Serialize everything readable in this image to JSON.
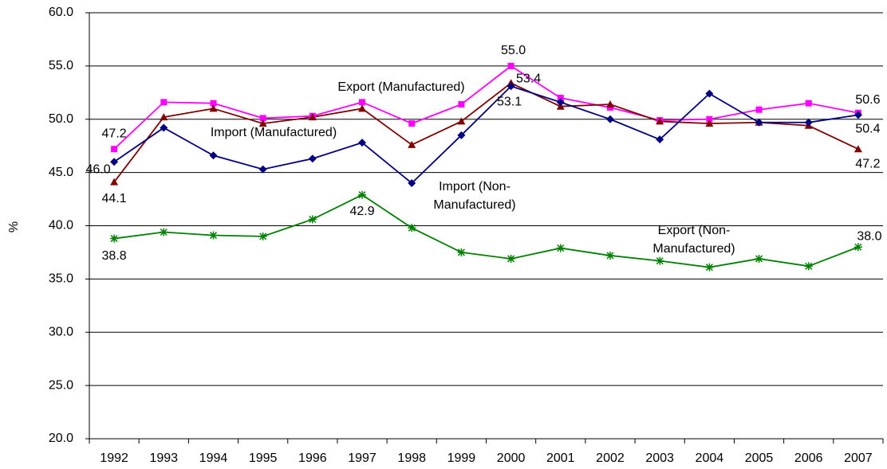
{
  "chart_data": {
    "type": "line",
    "y_label": "%",
    "categories": [
      "1992",
      "1993",
      "1994",
      "1995",
      "1996",
      "1997",
      "1998",
      "1999",
      "2000",
      "2001",
      "2002",
      "2003",
      "2004",
      "2005",
      "2006",
      "2007"
    ],
    "ylim": [
      20,
      60
    ],
    "yticks": [
      {
        "value": 20,
        "label": "20.0"
      },
      {
        "value": 25,
        "label": "25.0"
      },
      {
        "value": 30,
        "label": "30.0"
      },
      {
        "value": 35,
        "label": "35.0"
      },
      {
        "value": 40,
        "label": "40.0"
      },
      {
        "value": 45,
        "label": "45.0"
      },
      {
        "value": 50,
        "label": "50.0"
      },
      {
        "value": 55,
        "label": "55.0"
      },
      {
        "value": 60,
        "label": "60.0"
      }
    ],
    "grid": true,
    "series": [
      {
        "name": "Export (Manufactured)",
        "color": "#ff00ff",
        "marker": "square",
        "values": [
          47.2,
          51.6,
          51.5,
          50.1,
          50.3,
          51.6,
          49.6,
          51.4,
          55.0,
          52.0,
          51.1,
          49.9,
          50.0,
          50.9,
          51.5,
          50.6
        ],
        "value_labels": [
          "47.2",
          null,
          null,
          null,
          null,
          null,
          null,
          null,
          "55.0",
          null,
          null,
          null,
          null,
          null,
          null,
          "50.6"
        ]
      },
      {
        "name": "Import (Manufactured)",
        "color": "#800000",
        "marker": "triangle",
        "values": [
          44.1,
          50.2,
          51.0,
          49.6,
          50.2,
          51.0,
          47.6,
          49.8,
          53.4,
          51.2,
          51.4,
          49.8,
          49.6,
          49.7,
          49.4,
          47.2
        ],
        "value_labels": [
          "44.1",
          null,
          null,
          null,
          null,
          null,
          null,
          null,
          "53.4",
          null,
          null,
          null,
          null,
          null,
          null,
          "47.2"
        ]
      },
      {
        "name": "Import (Non-Manufactured)",
        "color": "#000080",
        "marker": "diamond",
        "values": [
          46.0,
          49.2,
          46.6,
          45.3,
          46.3,
          47.8,
          44.0,
          48.5,
          53.1,
          51.6,
          50.0,
          48.1,
          52.4,
          49.7,
          49.7,
          50.4
        ],
        "value_labels": [
          "46.0",
          null,
          null,
          null,
          null,
          null,
          null,
          null,
          "53.1",
          null,
          null,
          null,
          null,
          null,
          null,
          "50.4"
        ]
      },
      {
        "name": "Export (Non-Manufactured)",
        "color": "#008000",
        "marker": "star",
        "values": [
          38.8,
          39.4,
          39.1,
          39.0,
          40.6,
          42.9,
          39.8,
          37.5,
          36.9,
          37.9,
          37.2,
          36.7,
          36.1,
          36.9,
          36.2,
          38.0
        ],
        "value_labels": [
          "38.8",
          null,
          null,
          null,
          null,
          "42.9",
          null,
          null,
          null,
          null,
          null,
          null,
          null,
          null,
          null,
          "38.0"
        ]
      }
    ]
  }
}
